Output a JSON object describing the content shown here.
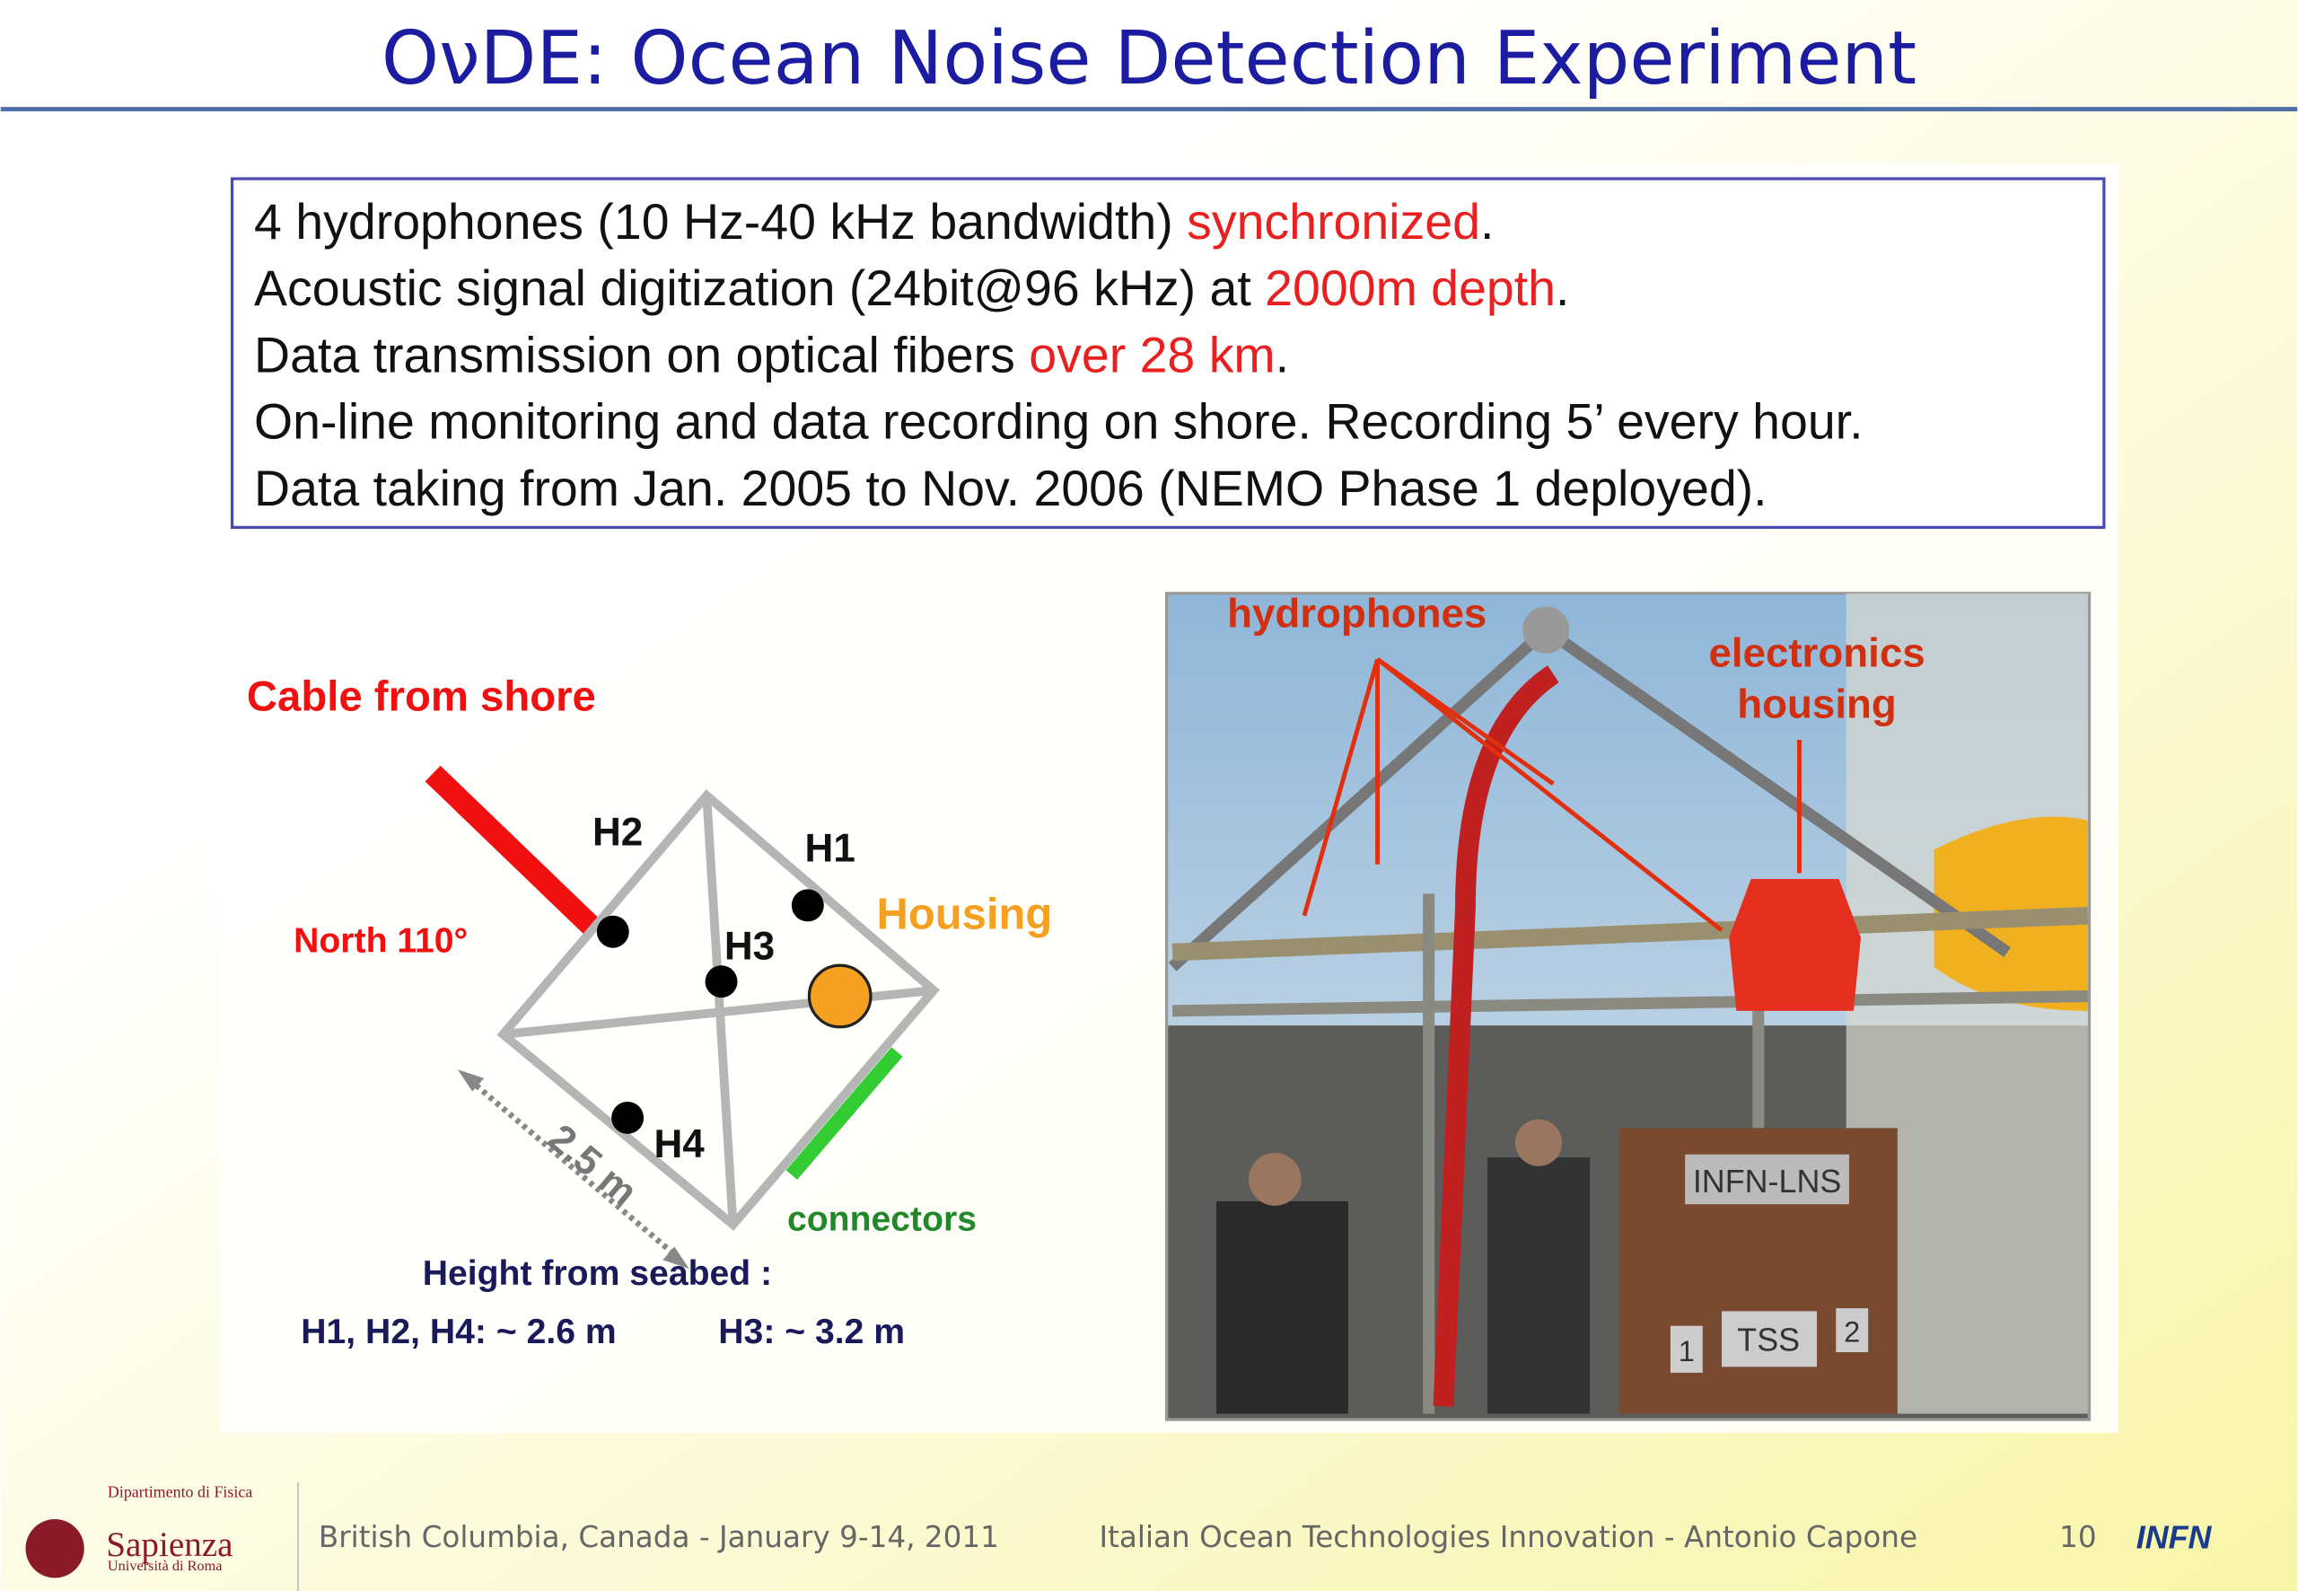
{
  "title": "OνDE: Ocean Noise Detection Experiment",
  "bullets": [
    {
      "segments": [
        {
          "text": "4 hydrophones (10 Hz-40 kHz bandwidth) ",
          "color": "#111111"
        },
        {
          "text": "synchronized",
          "color": "#e82020"
        },
        {
          "text": ".",
          "color": "#111111"
        }
      ]
    },
    {
      "segments": [
        {
          "text": "Acoustic signal digitization (24bit@96 kHz) at ",
          "color": "#111111"
        },
        {
          "text": "2000m depth",
          "color": "#e82020"
        },
        {
          "text": ".",
          "color": "#111111"
        }
      ]
    },
    {
      "segments": [
        {
          "text": "Data transmission on optical fibers ",
          "color": "#111111"
        },
        {
          "text": "over 28 km",
          "color": "#e82020"
        },
        {
          "text": ".",
          "color": "#111111"
        }
      ]
    },
    {
      "segments": [
        {
          "text": "On-line monitoring and data recording on shore. Recording 5’ every hour.",
          "color": "#111111"
        }
      ]
    },
    {
      "segments": [
        {
          "text": "Data taking from Jan. 2005 to Nov. 2006 (NEMO Phase 1 deployed).",
          "color": "#111111"
        }
      ]
    }
  ],
  "diagram": {
    "cable": "Cable from shore",
    "north": "North 110°",
    "h1": "H1",
    "h2": "H2",
    "h3": "H3",
    "h4": "H4",
    "housing": "Housing",
    "distance": "2.5 m",
    "connectors": "connectors",
    "height_heading": "Height from seabed :",
    "height_h124": "H1, H2, H4: ~ 2.6 m",
    "height_h3": "H3: ~ 3.2 m"
  },
  "photo": {
    "hydrophones": "hydrophones",
    "electronics": "electronics",
    "housing": "housing",
    "sign": "INFN-LNS",
    "tss": "TSS",
    "left_number": "1",
    "right_number": "2"
  },
  "footer": {
    "department": "Dipartimento di Fisica",
    "university": "Sapienza",
    "university_sub": "Università di Roma",
    "event": "British Columbia, Canada  -  January 9-14, 2011",
    "talk": "Italian Ocean Technologies Innovation  -  Antonio Capone",
    "page": "10",
    "logo": "INFN"
  }
}
